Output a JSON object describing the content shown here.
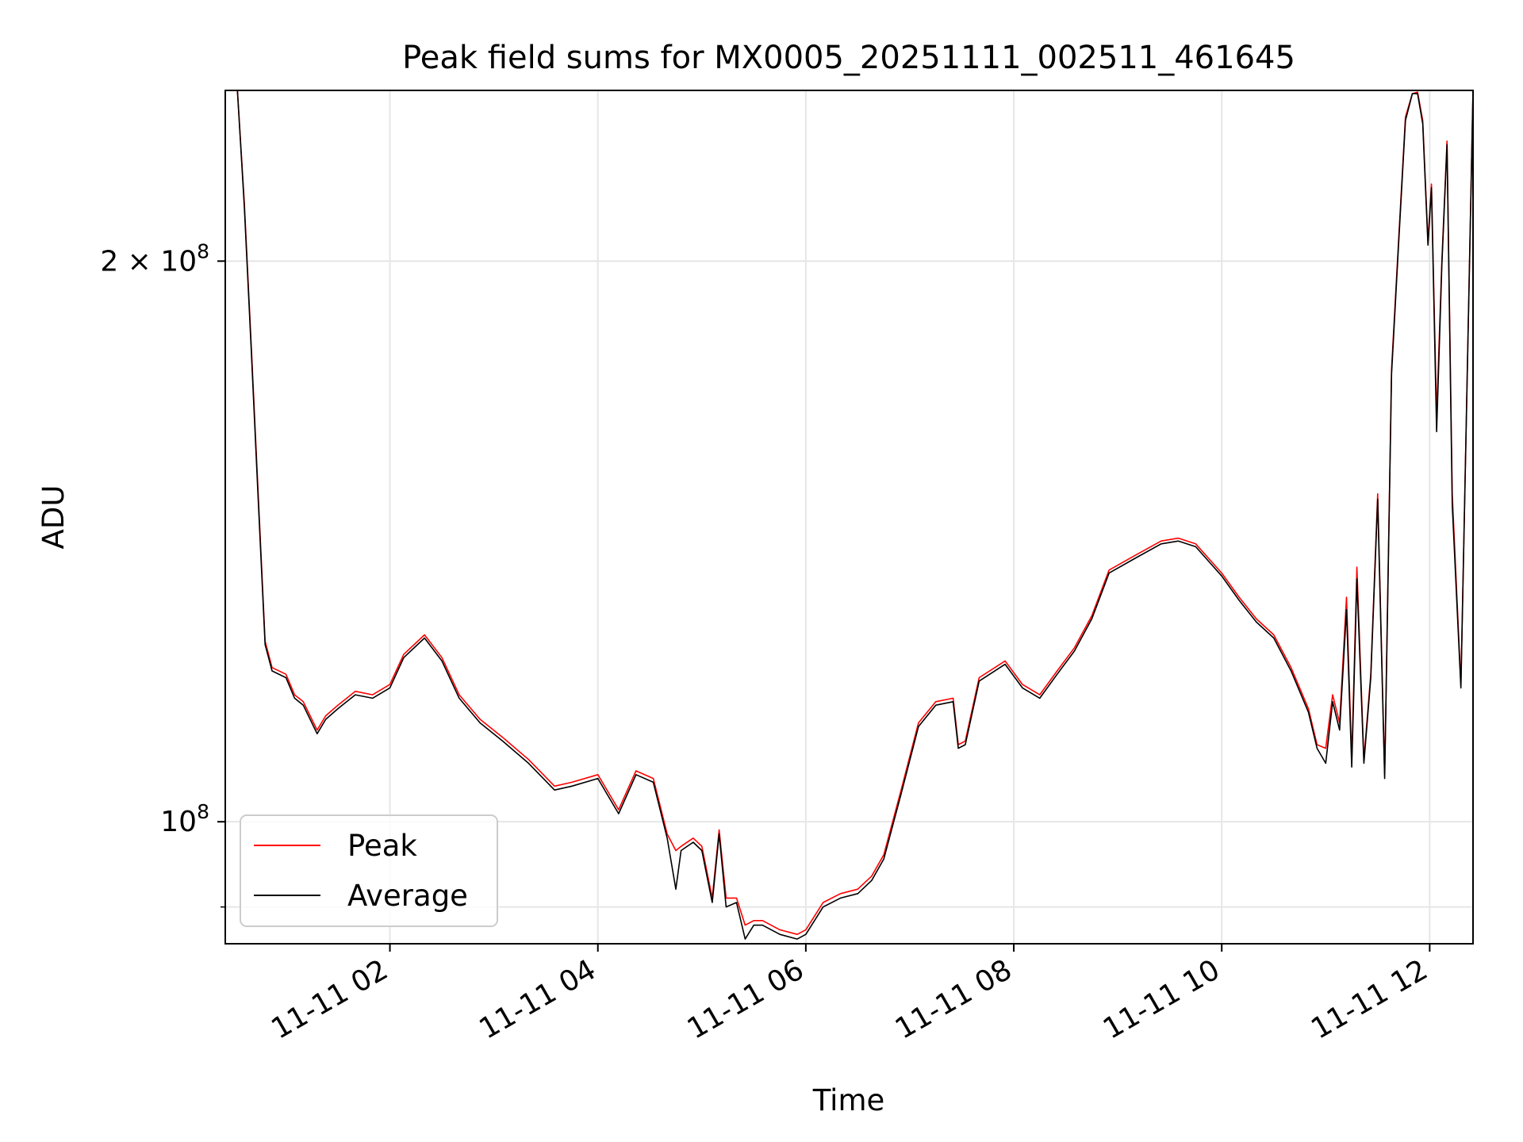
{
  "chart_data": {
    "type": "line",
    "title": "Peak field sums for MX0005_20251111_002511_461645",
    "xlabel": "Time",
    "ylabel": "ADU",
    "x_axis": "datetime",
    "xlim": [
      "2025-11-11T00:25",
      "2025-11-11T12:25"
    ],
    "ylim": [
      86000000,
      247000000
    ],
    "yscale": "log",
    "x_ticks": [
      {
        "value": "2025-11-11T02:00",
        "label": "11-11 02"
      },
      {
        "value": "2025-11-11T04:00",
        "label": "11-11 04"
      },
      {
        "value": "2025-11-11T06:00",
        "label": "11-11 06"
      },
      {
        "value": "2025-11-11T08:00",
        "label": "11-11 08"
      },
      {
        "value": "2025-11-11T10:00",
        "label": "11-11 10"
      },
      {
        "value": "2025-11-11T12:00",
        "label": "11-11 12"
      }
    ],
    "y_ticks_major": [
      {
        "value": 100000000,
        "base": "10",
        "exp": "8"
      },
      {
        "value": 200000000,
        "base": "2 × 10",
        "exp": "8"
      }
    ],
    "y_ticks_minor": [
      90000000
    ],
    "grid": true,
    "legend": "lower-left",
    "series": [
      {
        "name": "Peak",
        "color": "#ff0000",
        "x": [
          "2025-11-11T00:25",
          "2025-11-11T00:32",
          "2025-11-11T00:36",
          "2025-11-11T00:40",
          "2025-11-11T00:44",
          "2025-11-11T00:48",
          "2025-11-11T00:52",
          "2025-11-11T01:00",
          "2025-11-11T01:05",
          "2025-11-11T01:10",
          "2025-11-11T01:18",
          "2025-11-11T01:23",
          "2025-11-11T01:30",
          "2025-11-11T01:40",
          "2025-11-11T01:50",
          "2025-11-11T02:00",
          "2025-11-11T02:08",
          "2025-11-11T02:20",
          "2025-11-11T02:30",
          "2025-11-11T02:40",
          "2025-11-11T02:52",
          "2025-11-11T03:05",
          "2025-11-11T03:20",
          "2025-11-11T03:35",
          "2025-11-11T03:45",
          "2025-11-11T04:00",
          "2025-11-11T04:12",
          "2025-11-11T04:22",
          "2025-11-11T04:32",
          "2025-11-11T04:40",
          "2025-11-11T04:45",
          "2025-11-11T04:48",
          "2025-11-11T04:55",
          "2025-11-11T05:00",
          "2025-11-11T05:06",
          "2025-11-11T05:10",
          "2025-11-11T05:14",
          "2025-11-11T05:20",
          "2025-11-11T05:25",
          "2025-11-11T05:30",
          "2025-11-11T05:35",
          "2025-11-11T05:45",
          "2025-11-11T05:55",
          "2025-11-11T06:00",
          "2025-11-11T06:10",
          "2025-11-11T06:20",
          "2025-11-11T06:30",
          "2025-11-11T06:38",
          "2025-11-11T06:45",
          "2025-11-11T06:55",
          "2025-11-11T07:05",
          "2025-11-11T07:15",
          "2025-11-11T07:25",
          "2025-11-11T07:28",
          "2025-11-11T07:32",
          "2025-11-11T07:40",
          "2025-11-11T07:55",
          "2025-11-11T08:05",
          "2025-11-11T08:15",
          "2025-11-11T08:25",
          "2025-11-11T08:35",
          "2025-11-11T08:45",
          "2025-11-11T08:55",
          "2025-11-11T09:10",
          "2025-11-11T09:25",
          "2025-11-11T09:35",
          "2025-11-11T09:45",
          "2025-11-11T10:00",
          "2025-11-11T10:10",
          "2025-11-11T10:20",
          "2025-11-11T10:30",
          "2025-11-11T10:40",
          "2025-11-11T10:50",
          "2025-11-11T10:55",
          "2025-11-11T11:00",
          "2025-11-11T11:04",
          "2025-11-11T11:08",
          "2025-11-11T11:12",
          "2025-11-11T11:15",
          "2025-11-11T11:18",
          "2025-11-11T11:22",
          "2025-11-11T11:26",
          "2025-11-11T11:30",
          "2025-11-11T11:34",
          "2025-11-11T11:38",
          "2025-11-11T11:42",
          "2025-11-11T11:46",
          "2025-11-11T11:50",
          "2025-11-11T11:53",
          "2025-11-11T11:56",
          "2025-11-11T11:59",
          "2025-11-11T12:01",
          "2025-11-11T12:04",
          "2025-11-11T12:07",
          "2025-11-11T12:10",
          "2025-11-11T12:13",
          "2025-11-11T12:18",
          "2025-11-11T12:25"
        ],
        "values": [
          247000000,
          247000000,
          215000000,
          180000000,
          150000000,
          125000000,
          121000000,
          120000000,
          117000000,
          116000000,
          112000000,
          114000000,
          115500000,
          117500000,
          117000000,
          118500000,
          123000000,
          126000000,
          122500000,
          117000000,
          113500000,
          111000000,
          108000000,
          104500000,
          105000000,
          106000000,
          101500000,
          106500000,
          105500000,
          98500000,
          96500000,
          97000000,
          98000000,
          97000000,
          91000000,
          99000000,
          91000000,
          91000000,
          88000000,
          88500000,
          88500000,
          87500000,
          87000000,
          87500000,
          90500000,
          91500000,
          92000000,
          93500000,
          96000000,
          104000000,
          113000000,
          116000000,
          116500000,
          110000000,
          110500000,
          119500000,
          122000000,
          118500000,
          117000000,
          120500000,
          124000000,
          129000000,
          136500000,
          139000000,
          141500000,
          142000000,
          141000000,
          136000000,
          132000000,
          128500000,
          126000000,
          121000000,
          115000000,
          110000000,
          109500000,
          117000000,
          113000000,
          132000000,
          108000000,
          137000000,
          108000000,
          120000000,
          150000000,
          106000000,
          175000000,
          205000000,
          239000000,
          246000000,
          246500000,
          238000000,
          205000000,
          220000000,
          165000000,
          200000000,
          232000000,
          150000000,
          118500000,
          247000000
        ]
      },
      {
        "name": "Average",
        "color": "#000000",
        "x": [
          "2025-11-11T00:25",
          "2025-11-11T00:32",
          "2025-11-11T00:36",
          "2025-11-11T00:40",
          "2025-11-11T00:44",
          "2025-11-11T00:48",
          "2025-11-11T00:52",
          "2025-11-11T01:00",
          "2025-11-11T01:05",
          "2025-11-11T01:10",
          "2025-11-11T01:18",
          "2025-11-11T01:23",
          "2025-11-11T01:30",
          "2025-11-11T01:40",
          "2025-11-11T01:50",
          "2025-11-11T02:00",
          "2025-11-11T02:08",
          "2025-11-11T02:20",
          "2025-11-11T02:30",
          "2025-11-11T02:40",
          "2025-11-11T02:52",
          "2025-11-11T03:05",
          "2025-11-11T03:20",
          "2025-11-11T03:35",
          "2025-11-11T03:45",
          "2025-11-11T04:00",
          "2025-11-11T04:12",
          "2025-11-11T04:22",
          "2025-11-11T04:32",
          "2025-11-11T04:40",
          "2025-11-11T04:45",
          "2025-11-11T04:48",
          "2025-11-11T04:55",
          "2025-11-11T05:00",
          "2025-11-11T05:06",
          "2025-11-11T05:10",
          "2025-11-11T05:14",
          "2025-11-11T05:20",
          "2025-11-11T05:25",
          "2025-11-11T05:30",
          "2025-11-11T05:35",
          "2025-11-11T05:45",
          "2025-11-11T05:55",
          "2025-11-11T06:00",
          "2025-11-11T06:10",
          "2025-11-11T06:20",
          "2025-11-11T06:30",
          "2025-11-11T06:38",
          "2025-11-11T06:45",
          "2025-11-11T06:55",
          "2025-11-11T07:05",
          "2025-11-11T07:15",
          "2025-11-11T07:25",
          "2025-11-11T07:28",
          "2025-11-11T07:32",
          "2025-11-11T07:40",
          "2025-11-11T07:55",
          "2025-11-11T08:05",
          "2025-11-11T08:15",
          "2025-11-11T08:25",
          "2025-11-11T08:35",
          "2025-11-11T08:45",
          "2025-11-11T08:55",
          "2025-11-11T09:10",
          "2025-11-11T09:25",
          "2025-11-11T09:35",
          "2025-11-11T09:45",
          "2025-11-11T10:00",
          "2025-11-11T10:10",
          "2025-11-11T10:20",
          "2025-11-11T10:30",
          "2025-11-11T10:40",
          "2025-11-11T10:50",
          "2025-11-11T10:55",
          "2025-11-11T11:00",
          "2025-11-11T11:04",
          "2025-11-11T11:08",
          "2025-11-11T11:12",
          "2025-11-11T11:15",
          "2025-11-11T11:18",
          "2025-11-11T11:22",
          "2025-11-11T11:26",
          "2025-11-11T11:30",
          "2025-11-11T11:34",
          "2025-11-11T11:38",
          "2025-11-11T11:42",
          "2025-11-11T11:46",
          "2025-11-11T11:50",
          "2025-11-11T11:53",
          "2025-11-11T11:56",
          "2025-11-11T11:59",
          "2025-11-11T12:01",
          "2025-11-11T12:04",
          "2025-11-11T12:07",
          "2025-11-11T12:10",
          "2025-11-11T12:13",
          "2025-11-11T12:18",
          "2025-11-11T12:25"
        ],
        "values": [
          247000000,
          247000000,
          214000000,
          179000000,
          149000000,
          124500000,
          120500000,
          119500000,
          116500000,
          115500000,
          111500000,
          113500000,
          115000000,
          117000000,
          116500000,
          118000000,
          122500000,
          125500000,
          122000000,
          116500000,
          113000000,
          110500000,
          107500000,
          104000000,
          104500000,
          105500000,
          101000000,
          106000000,
          105000000,
          98000000,
          92000000,
          96500000,
          97500000,
          96500000,
          90500000,
          98500000,
          90000000,
          90500000,
          86500000,
          88000000,
          88000000,
          87000000,
          86500000,
          87000000,
          90000000,
          91000000,
          91500000,
          93000000,
          95500000,
          103500000,
          112500000,
          115500000,
          116000000,
          109500000,
          110000000,
          119000000,
          121500000,
          118000000,
          116500000,
          120000000,
          123500000,
          128500000,
          136000000,
          138500000,
          141000000,
          141500000,
          140500000,
          135500000,
          131500000,
          128000000,
          125500000,
          120500000,
          114500000,
          109500000,
          107500000,
          116000000,
          112000000,
          130000000,
          107000000,
          135000000,
          107500000,
          119500000,
          149000000,
          105500000,
          174000000,
          204000000,
          238000000,
          246000000,
          246000000,
          237000000,
          204000000,
          219000000,
          162000000,
          199000000,
          231000000,
          148000000,
          118000000,
          247000000
        ]
      }
    ]
  }
}
